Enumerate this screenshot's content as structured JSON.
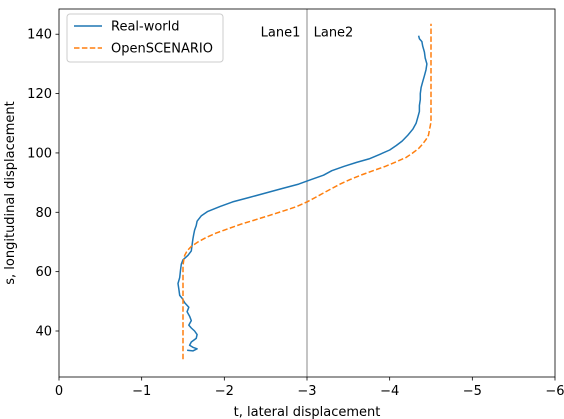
{
  "chart_data": {
    "type": "line",
    "title": "",
    "xlabel": "t, lateral displacement",
    "ylabel": "s, longitudinal displacement",
    "xlim": [
      0,
      -6
    ],
    "ylim": [
      24.5,
      148.5
    ],
    "xticks": [
      0,
      -1,
      -2,
      -3,
      -4,
      -5,
      -6
    ],
    "xtick_labels": [
      "0",
      "−1",
      "−2",
      "−3",
      "−4",
      "−5",
      "−6"
    ],
    "yticks": [
      40,
      60,
      80,
      100,
      120,
      140
    ],
    "ytick_labels": [
      "40",
      "60",
      "80",
      "100",
      "120",
      "140"
    ],
    "grid": false,
    "legend_position": "upper-left",
    "reference_line": {
      "x": -3,
      "color": "#b0b0b0"
    },
    "annotations": [
      {
        "text": "Lane1",
        "x": -2.92,
        "y": 141,
        "anchor": "end"
      },
      {
        "text": "Lane2",
        "x": -3.08,
        "y": 141,
        "anchor": "start"
      }
    ],
    "series": [
      {
        "name": "Real-world",
        "color": "#1f77b4",
        "dash": "solid",
        "points": [
          [
            -1.55,
            33.5
          ],
          [
            -1.62,
            33.3
          ],
          [
            -1.67,
            34.0
          ],
          [
            -1.62,
            34.5
          ],
          [
            -1.58,
            35.2
          ],
          [
            -1.6,
            36.3
          ],
          [
            -1.66,
            37.5
          ],
          [
            -1.67,
            38.8
          ],
          [
            -1.64,
            40.0
          ],
          [
            -1.6,
            41.0
          ],
          [
            -1.57,
            42.0
          ],
          [
            -1.6,
            43.5
          ],
          [
            -1.58,
            45.0
          ],
          [
            -1.55,
            46.5
          ],
          [
            -1.57,
            48.0
          ],
          [
            -1.52,
            49.5
          ],
          [
            -1.49,
            51.0
          ],
          [
            -1.46,
            52.0
          ],
          [
            -1.45,
            54.0
          ],
          [
            -1.44,
            56.0
          ],
          [
            -1.46,
            58.0
          ],
          [
            -1.47,
            60.5
          ],
          [
            -1.48,
            62.5
          ],
          [
            -1.5,
            64.0
          ],
          [
            -1.56,
            65.5
          ],
          [
            -1.6,
            67.0
          ],
          [
            -1.61,
            69.0
          ],
          [
            -1.62,
            71.0
          ],
          [
            -1.63,
            72.5
          ],
          [
            -1.64,
            74.0
          ],
          [
            -1.66,
            75.5
          ],
          [
            -1.67,
            77.0
          ],
          [
            -1.72,
            78.8
          ],
          [
            -1.8,
            80.3
          ],
          [
            -1.95,
            82.0
          ],
          [
            -2.1,
            83.5
          ],
          [
            -2.3,
            85.0
          ],
          [
            -2.5,
            86.5
          ],
          [
            -2.7,
            88.0
          ],
          [
            -2.9,
            89.5
          ],
          [
            -3.05,
            91.0
          ],
          [
            -3.2,
            92.5
          ],
          [
            -3.3,
            94.0
          ],
          [
            -3.45,
            95.5
          ],
          [
            -3.6,
            96.8
          ],
          [
            -3.75,
            98.0
          ],
          [
            -3.88,
            99.5
          ],
          [
            -4.0,
            101.0
          ],
          [
            -4.08,
            102.5
          ],
          [
            -4.15,
            104.0
          ],
          [
            -4.22,
            106.0
          ],
          [
            -4.28,
            108.0
          ],
          [
            -4.32,
            110.0
          ],
          [
            -4.34,
            112.0
          ],
          [
            -4.36,
            114.0
          ],
          [
            -4.36,
            116.0
          ],
          [
            -4.37,
            118.0
          ],
          [
            -4.37,
            120.0
          ],
          [
            -4.38,
            122.0
          ],
          [
            -4.4,
            124.0
          ],
          [
            -4.42,
            126.0
          ],
          [
            -4.44,
            128.0
          ],
          [
            -4.45,
            130.0
          ],
          [
            -4.43,
            132.0
          ],
          [
            -4.42,
            134.0
          ],
          [
            -4.4,
            136.0
          ],
          [
            -4.39,
            137.5
          ],
          [
            -4.36,
            138.5
          ],
          [
            -4.35,
            139.5
          ]
        ]
      },
      {
        "name": "OpenSCENARIO",
        "color": "#ff7f0e",
        "dash": "dashed",
        "points": [
          [
            -1.5,
            30.5
          ],
          [
            -1.5,
            34.0
          ],
          [
            -1.5,
            40.0
          ],
          [
            -1.5,
            46.0
          ],
          [
            -1.5,
            52.0
          ],
          [
            -1.5,
            58.0
          ],
          [
            -1.5,
            62.0
          ],
          [
            -1.51,
            64.0
          ],
          [
            -1.52,
            65.5
          ],
          [
            -1.55,
            67.0
          ],
          [
            -1.6,
            68.5
          ],
          [
            -1.68,
            70.0
          ],
          [
            -1.78,
            71.5
          ],
          [
            -1.9,
            73.0
          ],
          [
            -2.05,
            74.5
          ],
          [
            -2.2,
            76.0
          ],
          [
            -2.38,
            77.5
          ],
          [
            -2.55,
            79.0
          ],
          [
            -2.72,
            80.5
          ],
          [
            -2.88,
            82.0
          ],
          [
            -3.0,
            83.5
          ],
          [
            -3.1,
            85.0
          ],
          [
            -3.2,
            86.5
          ],
          [
            -3.3,
            88.0
          ],
          [
            -3.4,
            89.5
          ],
          [
            -3.52,
            91.0
          ],
          [
            -3.65,
            92.5
          ],
          [
            -3.8,
            94.0
          ],
          [
            -3.95,
            95.5
          ],
          [
            -4.08,
            97.0
          ],
          [
            -4.2,
            98.5
          ],
          [
            -4.28,
            100.0
          ],
          [
            -4.35,
            101.5
          ],
          [
            -4.4,
            103.0
          ],
          [
            -4.44,
            104.5
          ],
          [
            -4.47,
            106.0
          ],
          [
            -4.48,
            107.5
          ],
          [
            -4.49,
            109.0
          ],
          [
            -4.5,
            110.5
          ],
          [
            -4.5,
            112.0
          ],
          [
            -4.5,
            116.0
          ],
          [
            -4.5,
            120.0
          ],
          [
            -4.5,
            124.0
          ],
          [
            -4.5,
            128.0
          ],
          [
            -4.5,
            132.0
          ],
          [
            -4.5,
            136.0
          ],
          [
            -4.5,
            140.0
          ],
          [
            -4.5,
            143.5
          ]
        ]
      }
    ]
  }
}
